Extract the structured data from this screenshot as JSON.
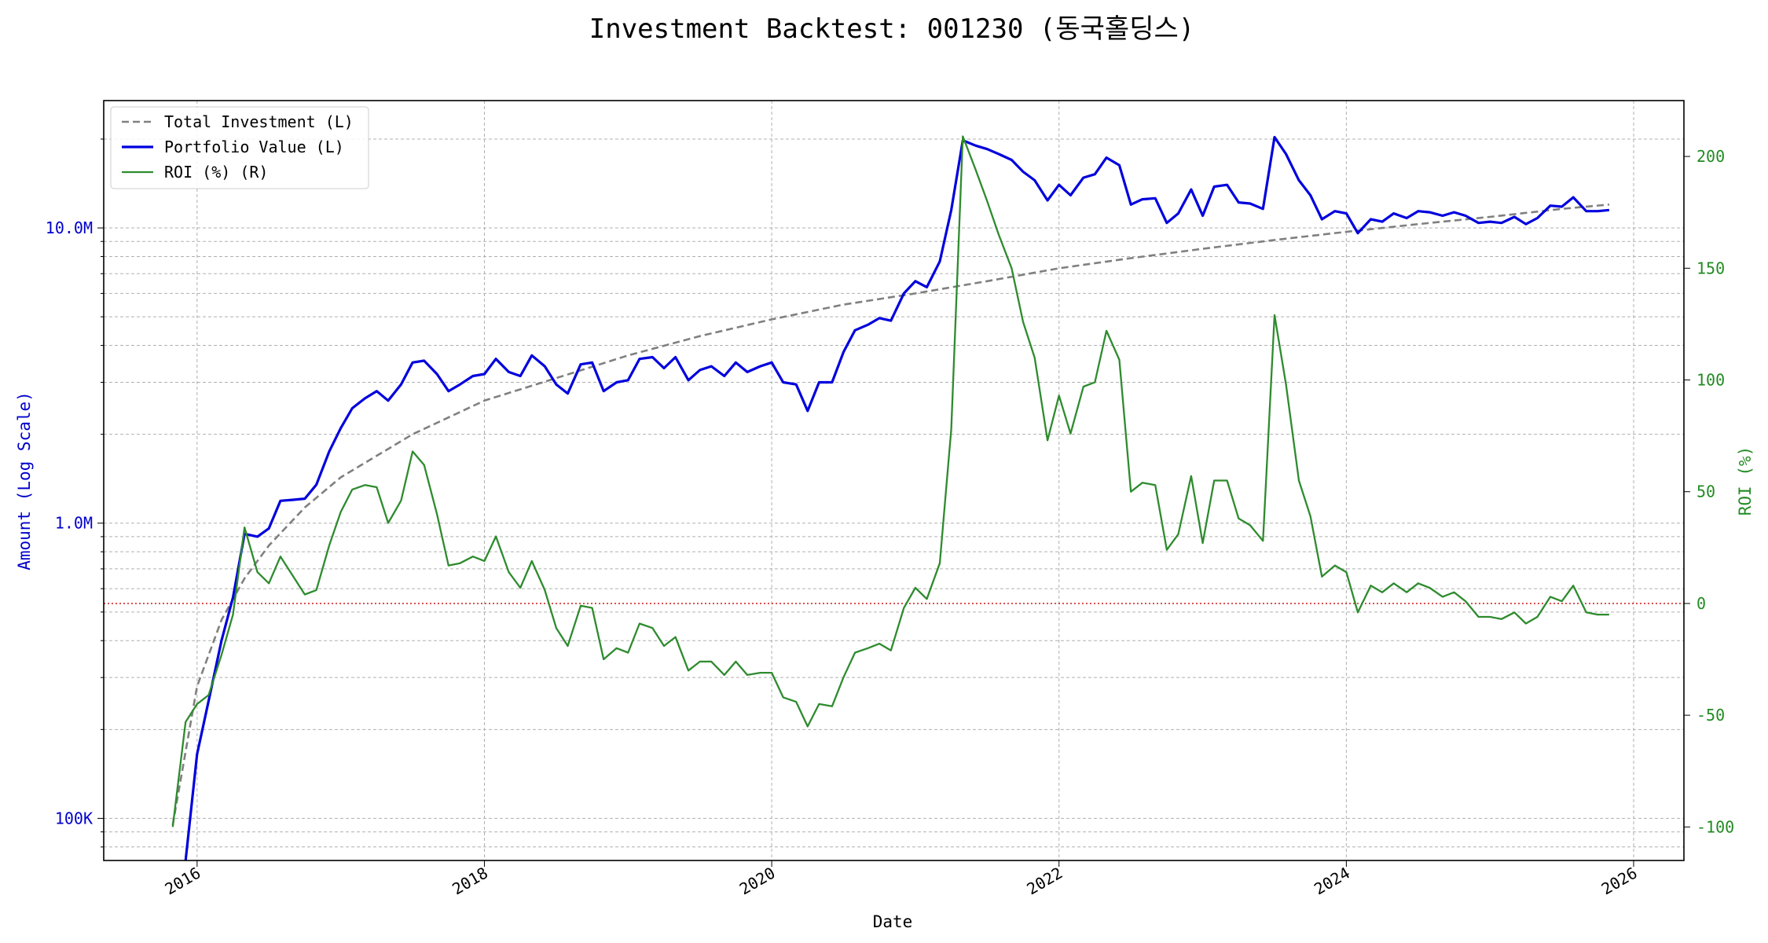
{
  "chart_data": {
    "type": "line",
    "title": "Investment Backtest: 001230 (동국홀딩스)",
    "xlabel": "Date",
    "ylabel_left": "Amount (Log Scale)",
    "ylabel_right": "ROI (%)",
    "left_scale": "log",
    "left_ylim": [
      72000,
      27000000
    ],
    "right_ylim": [
      -115,
      225
    ],
    "xlim": [
      2015.35,
      2026.35
    ],
    "x_ticks": [
      "2016",
      "2018",
      "2020",
      "2022",
      "2024",
      "2026"
    ],
    "left_ticks": [
      "100K",
      "1.0M",
      "10.0M"
    ],
    "right_ticks": [
      "-100",
      "-50",
      "0",
      "50",
      "100",
      "150",
      "200"
    ],
    "grid": true,
    "legend_position": "top-left",
    "colors": {
      "total_investment": "#808080",
      "portfolio_value": "#0000dd",
      "roi": "#2e8b2e",
      "zero_line": "#cc0000",
      "left_axis_text": "#0000cc",
      "right_axis_text": "#228b22"
    },
    "series": [
      {
        "name": "Total Investment (L)",
        "axis": "left",
        "style": "dashed",
        "x": [
          2015.83,
          2016.0,
          2016.17,
          2016.33,
          2016.5,
          2016.75,
          2017.0,
          2017.5,
          2018.0,
          2018.5,
          2019.0,
          2019.5,
          2020.0,
          2020.5,
          2021.0,
          2021.5,
          2022.0,
          2022.5,
          2023.0,
          2023.5,
          2024.0,
          2024.5,
          2025.0,
          2025.5,
          2025.83
        ],
        "values": [
          95000,
          280000,
          470000,
          650000,
          840000,
          1130000,
          1430000,
          2000000,
          2600000,
          3100000,
          3700000,
          4300000,
          4900000,
          5500000,
          6000000,
          6600000,
          7300000,
          7900000,
          8500000,
          9100000,
          9700000,
          10300000,
          10900000,
          11600000,
          12000000
        ]
      },
      {
        "name": "Portfolio Value (L)",
        "axis": "left",
        "style": "solid",
        "x": [
          2015.92,
          2016.0,
          2016.08,
          2016.17,
          2016.25,
          2016.33,
          2016.42,
          2016.5,
          2016.58,
          2016.67,
          2016.75,
          2016.83,
          2016.92,
          2017.0,
          2017.08,
          2017.17,
          2017.25,
          2017.33,
          2017.42,
          2017.5,
          2017.58,
          2017.67,
          2017.75,
          2017.83,
          2017.92,
          2018.0,
          2018.08,
          2018.17,
          2018.25,
          2018.33,
          2018.42,
          2018.5,
          2018.58,
          2018.67,
          2018.75,
          2018.83,
          2018.92,
          2019.0,
          2019.08,
          2019.17,
          2019.25,
          2019.33,
          2019.42,
          2019.5,
          2019.58,
          2019.67,
          2019.75,
          2019.83,
          2019.92,
          2020.0,
          2020.08,
          2020.17,
          2020.25,
          2020.33,
          2020.42,
          2020.5,
          2020.58,
          2020.67,
          2020.75,
          2020.83,
          2020.92,
          2021.0,
          2021.08,
          2021.17,
          2021.25,
          2021.33,
          2021.42,
          2021.5,
          2021.58,
          2021.67,
          2021.75,
          2021.83,
          2021.92,
          2022.0,
          2022.08,
          2022.17,
          2022.25,
          2022.33,
          2022.42,
          2022.5,
          2022.58,
          2022.67,
          2022.75,
          2022.83,
          2022.92,
          2023.0,
          2023.08,
          2023.17,
          2023.25,
          2023.33,
          2023.42,
          2023.5,
          2023.58,
          2023.67,
          2023.75,
          2023.83,
          2023.92,
          2024.0,
          2024.08,
          2024.17,
          2024.25,
          2024.33,
          2024.42,
          2024.5,
          2024.58,
          2024.67,
          2024.75,
          2024.83,
          2024.92,
          2025.0,
          2025.08,
          2025.17,
          2025.25,
          2025.33,
          2025.42,
          2025.5,
          2025.58,
          2025.67,
          2025.75,
          2025.83
        ],
        "values": [
          72000,
          165000,
          250000,
          400000,
          560000,
          920000,
          900000,
          960000,
          1190000,
          1200000,
          1210000,
          1350000,
          1750000,
          2100000,
          2450000,
          2650000,
          2800000,
          2600000,
          2950000,
          3500000,
          3550000,
          3200000,
          2800000,
          2950000,
          3150000,
          3200000,
          3600000,
          3250000,
          3150000,
          3700000,
          3400000,
          2950000,
          2750000,
          3450000,
          3500000,
          2800000,
          3000000,
          3050000,
          3600000,
          3650000,
          3350000,
          3650000,
          3050000,
          3300000,
          3400000,
          3150000,
          3500000,
          3250000,
          3400000,
          3500000,
          3000000,
          2950000,
          2400000,
          3000000,
          3000000,
          3800000,
          4500000,
          4700000,
          4950000,
          4850000,
          6000000,
          6600000,
          6300000,
          7700000,
          11500000,
          19800000,
          19000000,
          18500000,
          17800000,
          17000000,
          15500000,
          14500000,
          12400000,
          14000000,
          12900000,
          14800000,
          15200000,
          17300000,
          16300000,
          12000000,
          12500000,
          12600000,
          10400000,
          11200000,
          13500000,
          11000000,
          13800000,
          14000000,
          12200000,
          12100000,
          11600000,
          20300000,
          17800000,
          14500000,
          12900000,
          10700000,
          11400000,
          11200000,
          9600000,
          10700000,
          10500000,
          11200000,
          10800000,
          11400000,
          11300000,
          11000000,
          11300000,
          11000000,
          10400000,
          10500000,
          10400000,
          10900000,
          10300000,
          10800000,
          11900000,
          11800000,
          12700000,
          11400000,
          11400000,
          11500000
        ]
      },
      {
        "name": "ROI (%) (R)",
        "axis": "right",
        "style": "solid",
        "x": [
          2015.83,
          2015.92,
          2016.0,
          2016.08,
          2016.17,
          2016.25,
          2016.33,
          2016.42,
          2016.5,
          2016.58,
          2016.67,
          2016.75,
          2016.83,
          2016.92,
          2017.0,
          2017.08,
          2017.17,
          2017.25,
          2017.33,
          2017.42,
          2017.5,
          2017.58,
          2017.67,
          2017.75,
          2017.83,
          2017.92,
          2018.0,
          2018.08,
          2018.17,
          2018.25,
          2018.33,
          2018.42,
          2018.5,
          2018.58,
          2018.67,
          2018.75,
          2018.83,
          2018.92,
          2019.0,
          2019.08,
          2019.17,
          2019.25,
          2019.33,
          2019.42,
          2019.5,
          2019.58,
          2019.67,
          2019.75,
          2019.83,
          2019.92,
          2020.0,
          2020.08,
          2020.17,
          2020.25,
          2020.33,
          2020.42,
          2020.5,
          2020.58,
          2020.67,
          2020.75,
          2020.83,
          2020.92,
          2021.0,
          2021.08,
          2021.17,
          2021.25,
          2021.33,
          2021.42,
          2021.5,
          2021.58,
          2021.67,
          2021.75,
          2021.83,
          2021.92,
          2022.0,
          2022.08,
          2022.17,
          2022.25,
          2022.33,
          2022.42,
          2022.5,
          2022.58,
          2022.67,
          2022.75,
          2022.83,
          2022.92,
          2023.0,
          2023.08,
          2023.17,
          2023.25,
          2023.33,
          2023.42,
          2023.5,
          2023.58,
          2023.67,
          2023.75,
          2023.83,
          2023.92,
          2024.0,
          2024.08,
          2024.17,
          2024.25,
          2024.33,
          2024.42,
          2024.5,
          2024.58,
          2024.67,
          2024.75,
          2024.83,
          2024.92,
          2025.0,
          2025.08,
          2025.17,
          2025.25,
          2025.33,
          2025.42,
          2025.5,
          2025.58,
          2025.67,
          2025.75,
          2025.83
        ],
        "values": [
          -100,
          -53,
          -45,
          -41,
          -23,
          -5,
          34,
          14,
          9,
          21,
          12,
          4,
          6,
          26,
          41,
          51,
          53,
          52,
          36,
          46,
          68,
          62,
          40,
          17,
          18,
          21,
          19,
          30,
          14,
          7,
          19,
          6,
          -11,
          -19,
          -1,
          -2,
          -25,
          -20,
          -22,
          -9,
          -11,
          -19,
          -15,
          -30,
          -26,
          -26,
          -32,
          -26,
          -32,
          -31,
          -31,
          -42,
          -44,
          -55,
          -45,
          -46,
          -33,
          -22,
          -20,
          -18,
          -21,
          -2,
          7,
          2,
          18,
          78,
          209,
          194,
          180,
          165,
          150,
          126,
          110,
          73,
          93,
          76,
          97,
          99,
          122,
          109,
          50,
          54,
          53,
          24,
          31,
          57,
          27,
          55,
          55,
          38,
          35,
          28,
          129,
          98,
          55,
          39,
          12,
          17,
          14,
          -4,
          8,
          5,
          9,
          5,
          9,
          7,
          3,
          5,
          1,
          -6,
          -6,
          -7,
          -4,
          -9,
          -6,
          3,
          1,
          8,
          -4,
          -5,
          -5
        ]
      }
    ]
  }
}
